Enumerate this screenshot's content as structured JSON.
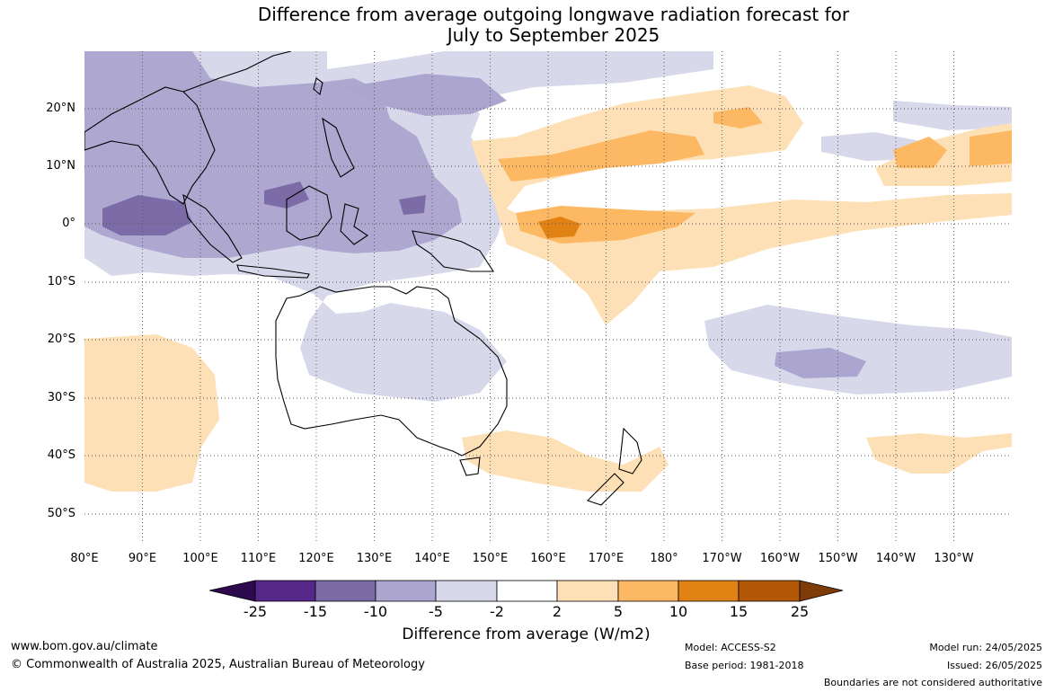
{
  "title": {
    "line1": "Difference from average outgoing longwave radiation forecast for",
    "line2": "July to September 2025"
  },
  "map": {
    "latitude_labels": [
      "20°N",
      "10°N",
      "0°",
      "10°S",
      "20°S",
      "30°S",
      "40°S",
      "50°S"
    ],
    "longitude_labels": [
      "80°E",
      "90°E",
      "100°E",
      "110°E",
      "120°E",
      "130°E",
      "140°E",
      "150°E",
      "160°E",
      "170°E",
      "180°",
      "170°W",
      "160°W",
      "150°W",
      "140°W",
      "130°W"
    ],
    "latitude_range": [
      -55,
      30
    ],
    "longitude_range": [
      80,
      240
    ],
    "colors": {
      "ocean": "#ffffff",
      "coastline": "#000000",
      "borders": "#888888",
      "gridline": "#555555"
    }
  },
  "colorbar": {
    "ticks": [
      "-25",
      "-15",
      "-10",
      "-5",
      "-2",
      "2",
      "5",
      "10",
      "15",
      "25"
    ],
    "bins": [
      {
        "range": "< -25",
        "color": "#2d0a4e"
      },
      {
        "range": "-25 to -15",
        "color": "#542788"
      },
      {
        "range": "-15 to -10",
        "color": "#7b6ca8"
      },
      {
        "range": "-10 to -5",
        "color": "#aca5cf"
      },
      {
        "range": "-5 to -2",
        "color": "#d8d8eb"
      },
      {
        "range": "-2 to 2",
        "color": "#ffffff"
      },
      {
        "range": "2 to 5",
        "color": "#fee0b6"
      },
      {
        "range": "5 to 10",
        "color": "#fdb863"
      },
      {
        "range": "10 to 15",
        "color": "#e08214"
      },
      {
        "range": "15 to 25",
        "color": "#b35806"
      },
      {
        "range": "> 25",
        "color": "#7f3b08"
      }
    ],
    "label": "Difference from average (W/m2)"
  },
  "footer": {
    "website": "www.bom.gov.au/climate",
    "copyright": "© Commonwealth of Australia 2025, Australian Bureau of Meteorology",
    "model": "Model: ACCESS-S2",
    "base_period": "Base period: 1981-2018",
    "model_run": "Model run: 24/05/2025",
    "issued": "Issued: 26/05/2025",
    "disclaimer": "Boundaries are not considered authoritative"
  }
}
